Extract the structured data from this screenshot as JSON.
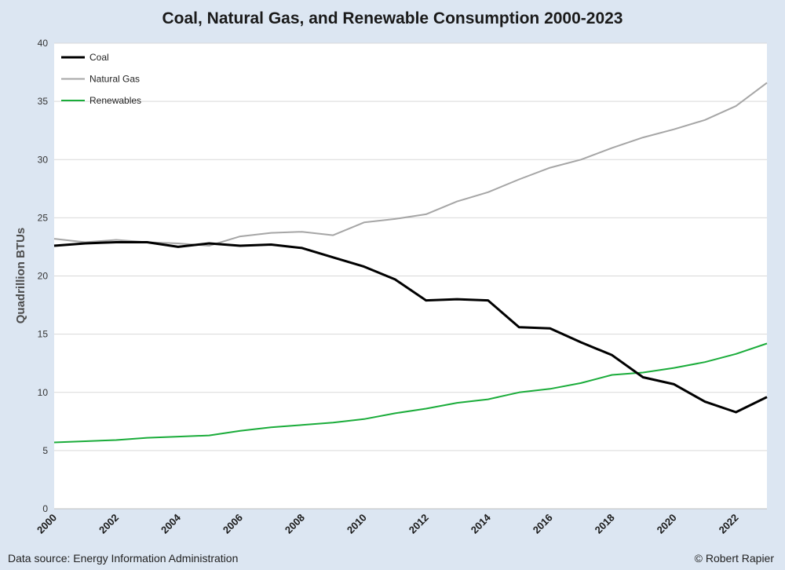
{
  "page": {
    "source_note": "Data source: Energy Information Administration",
    "credit_note": "© Robert Rapier"
  },
  "chart_data": {
    "type": "line",
    "title": "Coal, Natural Gas, and Renewable Consumption 2000-2023",
    "xlabel": "",
    "ylabel": "Quadrillion BTUs",
    "x": [
      2000,
      2001,
      2002,
      2003,
      2004,
      2005,
      2006,
      2007,
      2008,
      2009,
      2010,
      2011,
      2012,
      2013,
      2014,
      2015,
      2016,
      2017,
      2018,
      2019,
      2020,
      2021,
      2022,
      2023
    ],
    "xlim": [
      2000,
      2023
    ],
    "ylim": [
      0,
      40
    ],
    "x_ticks": [
      2000,
      2002,
      2004,
      2006,
      2008,
      2010,
      2012,
      2014,
      2016,
      2018,
      2020,
      2022
    ],
    "y_ticks": [
      0,
      5,
      10,
      15,
      20,
      25,
      30,
      35,
      40
    ],
    "grid": "horizontal",
    "legend_position": "top-left",
    "series": [
      {
        "name": "Coal",
        "color": "#000000",
        "values": [
          22.6,
          22.8,
          22.9,
          22.9,
          22.5,
          22.8,
          22.6,
          22.7,
          22.4,
          21.6,
          20.8,
          19.7,
          17.9,
          18.0,
          17.9,
          15.6,
          15.5,
          14.3,
          13.2,
          11.3,
          10.7,
          9.2,
          8.3,
          9.6
        ]
      },
      {
        "name": "Natural Gas",
        "color": "#a6a6a6",
        "values": [
          23.2,
          22.9,
          23.1,
          22.9,
          22.8,
          22.6,
          23.4,
          23.7,
          23.8,
          23.5,
          24.6,
          24.9,
          25.3,
          26.4,
          27.2,
          28.3,
          29.3,
          30.0,
          31.0,
          31.9,
          32.6,
          33.4,
          34.6,
          36.6
        ]
      },
      {
        "name": "Renewables",
        "color": "#1aac3a",
        "values": [
          5.7,
          5.8,
          5.9,
          6.1,
          6.2,
          6.3,
          6.7,
          7.0,
          7.2,
          7.4,
          7.7,
          8.2,
          8.6,
          9.1,
          9.4,
          10.0,
          10.3,
          10.8,
          11.5,
          11.7,
          12.1,
          12.6,
          13.3,
          14.2
        ]
      }
    ]
  }
}
